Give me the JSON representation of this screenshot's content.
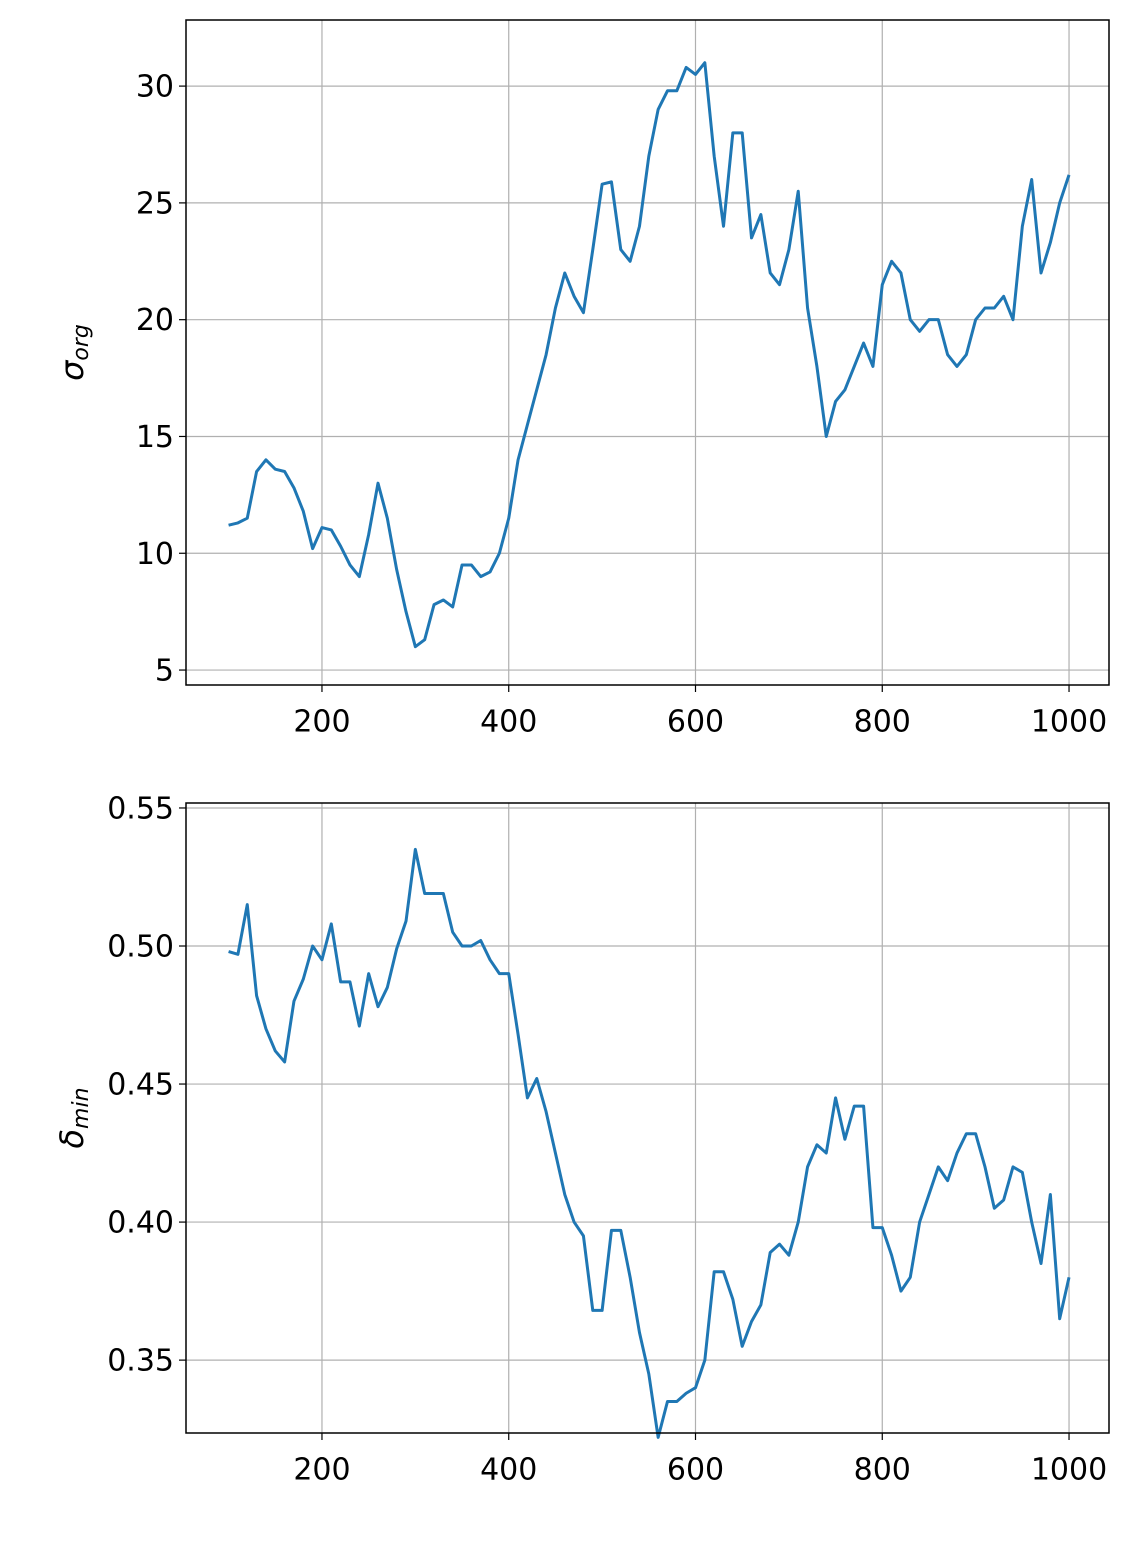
{
  "chart_data": [
    {
      "type": "line",
      "ylabel": {
        "symbol": "σ",
        "sub": "org"
      },
      "x": [
        100,
        110,
        120,
        130,
        140,
        150,
        160,
        170,
        180,
        190,
        200,
        210,
        220,
        230,
        240,
        250,
        260,
        270,
        280,
        290,
        300,
        310,
        320,
        330,
        340,
        350,
        360,
        370,
        380,
        390,
        400,
        410,
        420,
        430,
        440,
        450,
        460,
        470,
        480,
        490,
        500,
        510,
        520,
        530,
        540,
        550,
        560,
        570,
        580,
        590,
        600,
        610,
        620,
        630,
        640,
        650,
        660,
        670,
        680,
        690,
        700,
        710,
        720,
        730,
        740,
        750,
        760,
        770,
        780,
        790,
        800,
        810,
        820,
        830,
        840,
        850,
        860,
        870,
        880,
        890,
        900,
        910,
        920,
        930,
        940,
        950,
        960,
        970,
        980,
        990,
        1000
      ],
      "series": [
        {
          "color": "#1f77b4",
          "values": [
            11.2,
            11.3,
            11.5,
            13.5,
            14.0,
            13.6,
            13.5,
            12.8,
            11.8,
            10.2,
            11.1,
            11.0,
            10.3,
            9.5,
            9.0,
            10.8,
            13.0,
            11.5,
            9.3,
            7.5,
            6.0,
            6.3,
            7.8,
            8.0,
            7.7,
            9.5,
            9.5,
            9.0,
            9.2,
            10.0,
            11.5,
            14.0,
            15.5,
            17.0,
            18.5,
            20.5,
            22.0,
            21.0,
            20.3,
            23.0,
            25.8,
            25.9,
            23.0,
            22.5,
            24.0,
            27.0,
            29.0,
            29.8,
            29.8,
            30.8,
            30.5,
            31.0,
            27.0,
            24.0,
            28.0,
            28.0,
            23.5,
            24.5,
            22.0,
            21.5,
            23.0,
            25.5,
            20.5,
            18.0,
            15.0,
            16.5,
            17.0,
            18.0,
            19.0,
            18.0,
            21.5,
            22.5,
            22.0,
            20.0,
            19.5,
            20.0,
            20.0,
            18.5,
            18.0,
            18.5,
            20.0,
            20.5,
            20.5,
            21.0,
            20.0,
            24.0,
            26.0,
            22.0,
            23.3,
            25.0,
            26.2
          ]
        }
      ],
      "xlim": [
        54.4,
        1042.8
      ],
      "ylim": [
        4.36,
        32.83
      ],
      "xticks": [
        200,
        400,
        600,
        800,
        1000
      ],
      "yticks": [
        5,
        10,
        15,
        20,
        25,
        30
      ],
      "grid": true
    },
    {
      "type": "line",
      "ylabel": {
        "symbol": "δ",
        "sub": "min"
      },
      "x": [
        100,
        110,
        120,
        130,
        140,
        150,
        160,
        170,
        180,
        190,
        200,
        210,
        220,
        230,
        240,
        250,
        260,
        270,
        280,
        290,
        300,
        310,
        320,
        330,
        340,
        350,
        360,
        370,
        380,
        390,
        400,
        410,
        420,
        430,
        440,
        450,
        460,
        470,
        480,
        490,
        500,
        510,
        520,
        530,
        540,
        550,
        560,
        570,
        580,
        590,
        600,
        610,
        620,
        630,
        640,
        650,
        660,
        670,
        680,
        690,
        700,
        710,
        720,
        730,
        740,
        750,
        760,
        770,
        780,
        790,
        800,
        810,
        820,
        830,
        840,
        850,
        860,
        870,
        880,
        890,
        900,
        910,
        920,
        930,
        940,
        950,
        960,
        970,
        980,
        990,
        1000
      ],
      "series": [
        {
          "color": "#1f77b4",
          "values": [
            0.498,
            0.497,
            0.515,
            0.482,
            0.47,
            0.462,
            0.458,
            0.48,
            0.488,
            0.5,
            0.495,
            0.508,
            0.487,
            0.487,
            0.471,
            0.49,
            0.478,
            0.485,
            0.499,
            0.509,
            0.535,
            0.519,
            0.519,
            0.519,
            0.505,
            0.5,
            0.5,
            0.502,
            0.495,
            0.49,
            0.49,
            0.468,
            0.445,
            0.452,
            0.44,
            0.425,
            0.41,
            0.4,
            0.395,
            0.368,
            0.368,
            0.397,
            0.397,
            0.38,
            0.36,
            0.345,
            0.322,
            0.335,
            0.335,
            0.338,
            0.34,
            0.35,
            0.382,
            0.382,
            0.372,
            0.355,
            0.364,
            0.37,
            0.389,
            0.392,
            0.388,
            0.4,
            0.42,
            0.428,
            0.425,
            0.445,
            0.43,
            0.442,
            0.442,
            0.398,
            0.398,
            0.388,
            0.375,
            0.38,
            0.4,
            0.41,
            0.42,
            0.415,
            0.425,
            0.432,
            0.432,
            0.42,
            0.405,
            0.408,
            0.42,
            0.418,
            0.4,
            0.385,
            0.41,
            0.365,
            0.38
          ]
        }
      ],
      "xlim": [
        54.4,
        1042.8
      ],
      "ylim": [
        0.3236,
        0.5518
      ],
      "xticks": [
        200,
        400,
        600,
        800,
        1000
      ],
      "yticks": [
        0.35,
        {
          "value": 0.4,
          "label": "0.40"
        },
        0.45,
        {
          "value": 0.5,
          "label": "0.50"
        },
        0.55
      ],
      "grid": true
    }
  ]
}
